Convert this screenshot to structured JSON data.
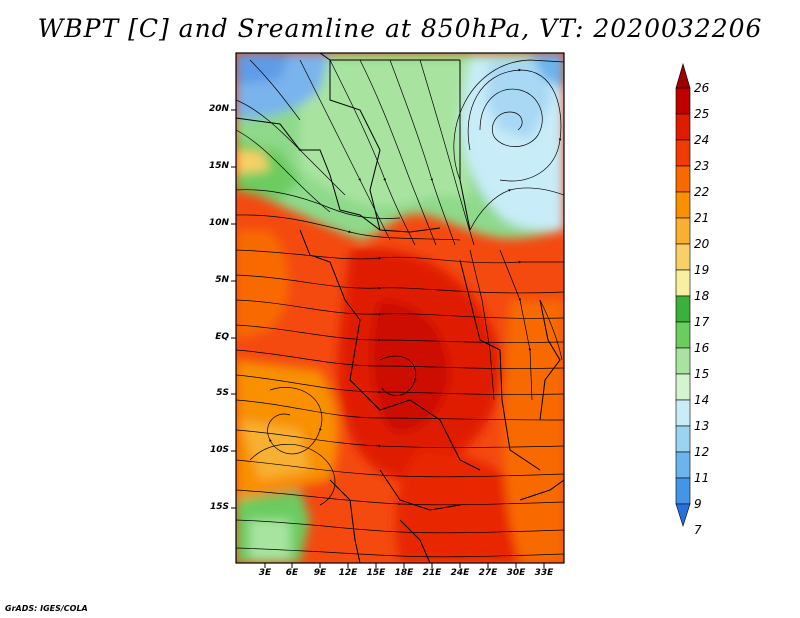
{
  "title": "WBPT [C] and Sreamline at 850hPa, VT: 2020032206",
  "credit": "GrADS: IGES/COLA",
  "map": {
    "lat_labels": [
      "20N",
      "15N",
      "10N",
      "5N",
      "EQ",
      "5S",
      "10S",
      "15S"
    ],
    "lon_labels": [
      "3E",
      "6E",
      "9E",
      "12E",
      "15E",
      "18E",
      "21E",
      "24E",
      "27E",
      "30E",
      "33E"
    ]
  },
  "colorbar": {
    "labels": [
      "26",
      "25",
      "24",
      "23",
      "22",
      "21",
      "20",
      "19",
      "18",
      "17",
      "16",
      "15",
      "14",
      "13",
      "12",
      "11",
      "9",
      "7"
    ],
    "colors": [
      "#a00000",
      "#c00000",
      "#e01c00",
      "#f03c00",
      "#f86a00",
      "#f89000",
      "#f8b030",
      "#f8d068",
      "#f8f0a0",
      "#3cb03c",
      "#6ccc60",
      "#a8e4a0",
      "#d4f4d0",
      "#c8ecf8",
      "#9cd4f0",
      "#6cb4ec",
      "#4494e8",
      "#2870e0"
    ]
  }
}
